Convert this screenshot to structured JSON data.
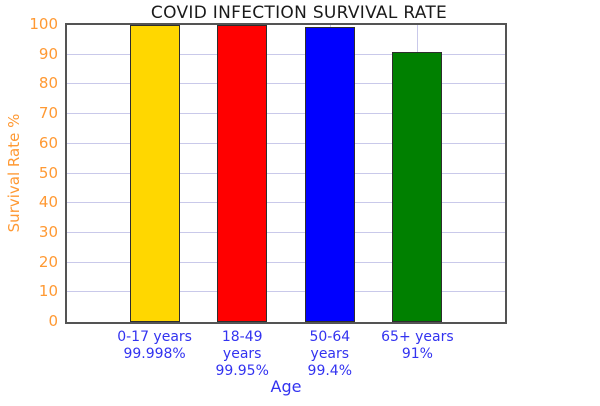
{
  "chart_data": {
    "type": "bar",
    "title": "COVID INFECTION SURVIVAL RATE",
    "xlabel": "Age",
    "ylabel": "Survival Rate %",
    "categories": [
      "0-17 years",
      "18-49 years",
      "50-64 years",
      "65+ years"
    ],
    "values": [
      99.998,
      99.95,
      99.4,
      91
    ],
    "value_labels": [
      "99.998%",
      "99.95%",
      "99.4%",
      "91%"
    ],
    "x_tick_label_lines": [
      [
        "0-17 years",
        "99.998%"
      ],
      [
        "18-49",
        "years",
        "99.95%"
      ],
      [
        "50-64",
        "years",
        "99.4%"
      ],
      [
        "65+ years",
        "91%"
      ]
    ],
    "bar_colors": [
      "#ffd700",
      "#ff0000",
      "#0000ff",
      "#008000"
    ],
    "ylim": [
      0,
      100
    ],
    "yticks": [
      0,
      10,
      20,
      30,
      40,
      50,
      60,
      70,
      80,
      90,
      100
    ],
    "grid": true,
    "legend": "none",
    "colors": {
      "title_text": "#1a1a1a",
      "y_axis_text": "#ff9933",
      "x_axis_text": "#3333f0",
      "gridline": "#c9c9ea",
      "frame": "#545454",
      "bar_border": "#2e2e2e",
      "background": "#ffffff"
    }
  }
}
